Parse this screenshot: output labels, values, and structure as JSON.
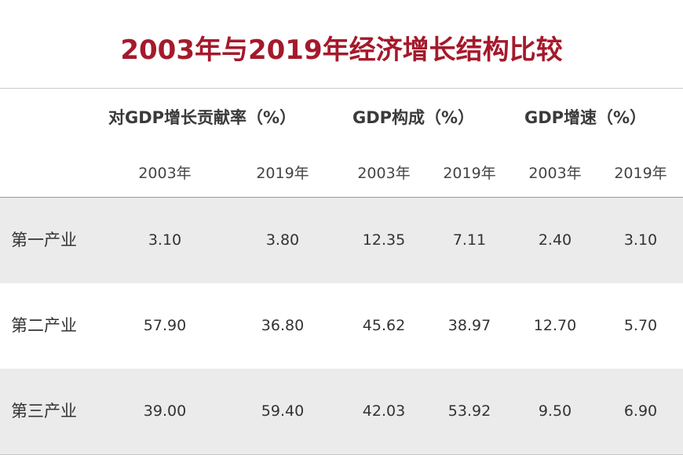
{
  "title": "2003年与2019年经济增长结构比较",
  "table": {
    "groups": [
      {
        "label": "对GDP增长贡献率（%）"
      },
      {
        "label": "GDP构成（%）"
      },
      {
        "label": "GDP增速（%）"
      }
    ],
    "years": [
      "2003年",
      "2019年",
      "2003年",
      "2019年",
      "2003年",
      "2019年"
    ],
    "rows": [
      {
        "label": "第一产业",
        "values": [
          "3.10",
          "3.80",
          "12.35",
          "7.11",
          "2.40",
          "3.10"
        ]
      },
      {
        "label": "第二产业",
        "values": [
          "57.90",
          "36.80",
          "45.62",
          "38.97",
          "12.70",
          "5.70"
        ]
      },
      {
        "label": "第三产业",
        "values": [
          "39.00",
          "59.40",
          "42.03",
          "53.92",
          "9.50",
          "6.90"
        ]
      }
    ]
  },
  "colors": {
    "title": "#a5192b",
    "shaded_row": "#ebebeb",
    "rule": "#c9c9c9"
  }
}
